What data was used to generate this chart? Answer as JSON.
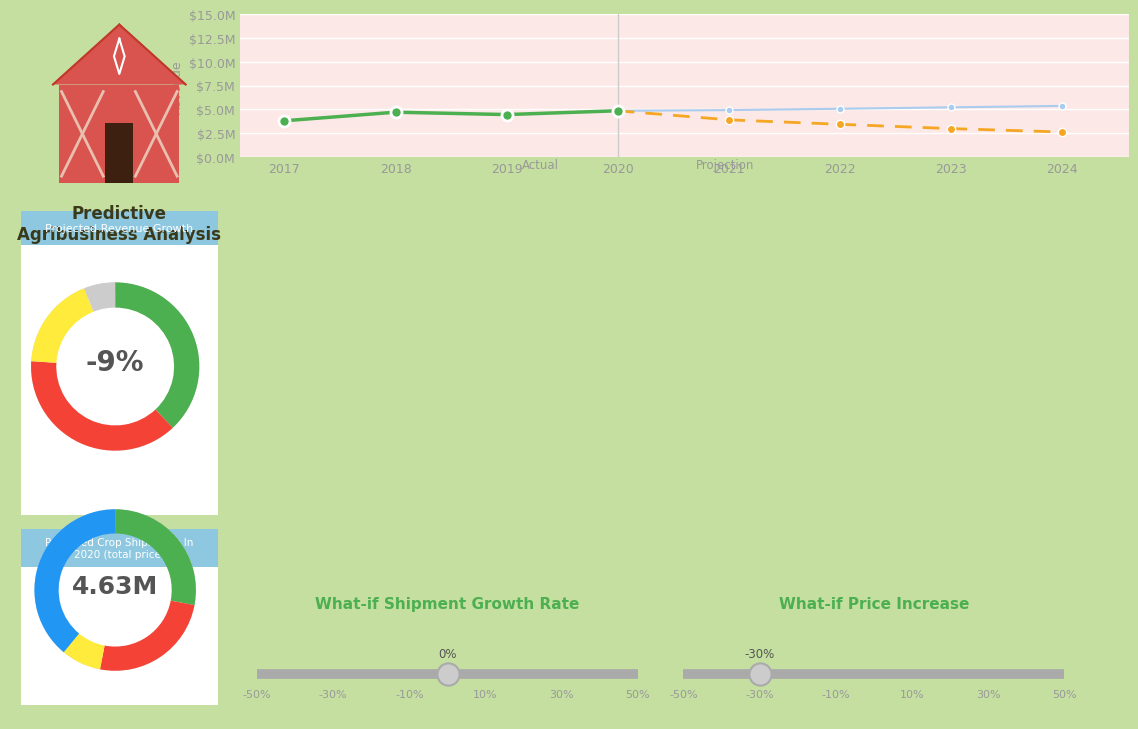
{
  "bg_color": "#c5dfa0",
  "chart_area_bg": "#fce8e6",
  "slider_panel_bg": "#f0f0f0",
  "panel_header_bg": "#8dc8e0",
  "title_text": "Predictive\nAgribusiness Analysis",
  "title_color": "#3a3a1a",
  "title_fontsize": 12,
  "rev_growth_label": "Projected Revenue Growth",
  "rev_growth_value": "-9%",
  "rev_growth_colors": [
    "#4caf50",
    "#f44336",
    "#ffeb3b",
    "#cccccc"
  ],
  "rev_growth_sizes": [
    0.38,
    0.38,
    0.18,
    0.06
  ],
  "shipment_label": "Projected Crop Shipments In\n2020 (total price)",
  "shipment_value": "4.63M",
  "shipment_colors": [
    "#4caf50",
    "#f44336",
    "#ffeb3b",
    "#2196F3"
  ],
  "shipment_sizes": [
    0.28,
    0.25,
    0.08,
    0.39
  ],
  "years_actual": [
    2017,
    2018,
    2019,
    2020
  ],
  "actual_values": [
    3800000,
    4700000,
    4450000,
    4850000
  ],
  "years_proj_optimistic": [
    2020,
    2021,
    2022,
    2023,
    2024
  ],
  "proj_optimistic": [
    4850000,
    4920000,
    5060000,
    5210000,
    5360000
  ],
  "years_proj_pessimistic": [
    2020,
    2021,
    2022,
    2023,
    2024
  ],
  "proj_pessimistic": [
    4850000,
    3900000,
    3430000,
    2980000,
    2620000
  ],
  "actual_color": "#4caf50",
  "optimistic_color": "#aaccee",
  "pessimistic_color": "#f5a623",
  "ylabel": "Revenue",
  "yticks": [
    0,
    2500000,
    5000000,
    7500000,
    10000000,
    12500000,
    15000000
  ],
  "ytick_labels": [
    "$0.0M",
    "$2.5M",
    "$5.0M",
    "$7.5M",
    "$10.0M",
    "$12.5M",
    "$15.0M"
  ],
  "slider1_title": "What-if Shipment Growth Rate",
  "slider1_value": 0,
  "slider1_ticks": [
    "-50%",
    "-30%",
    "-10%",
    "10%",
    "30%",
    "50%"
  ],
  "slider1_tick_vals": [
    -50,
    -30,
    -10,
    10,
    30,
    50
  ],
  "slider1_label": "0%",
  "slider2_title": "What-if Price Increase",
  "slider2_value": -30,
  "slider2_ticks": [
    "-50%",
    "-30%",
    "-10%",
    "10%",
    "30%",
    "50%"
  ],
  "slider2_tick_vals": [
    -50,
    -30,
    -10,
    10,
    30,
    50
  ],
  "slider2_label": "-30%",
  "slider_color": "#aaaaaa",
  "slider_handle_color": "#cccccc",
  "slider_title_color": "#4caf50",
  "slider_title_fontsize": 11
}
